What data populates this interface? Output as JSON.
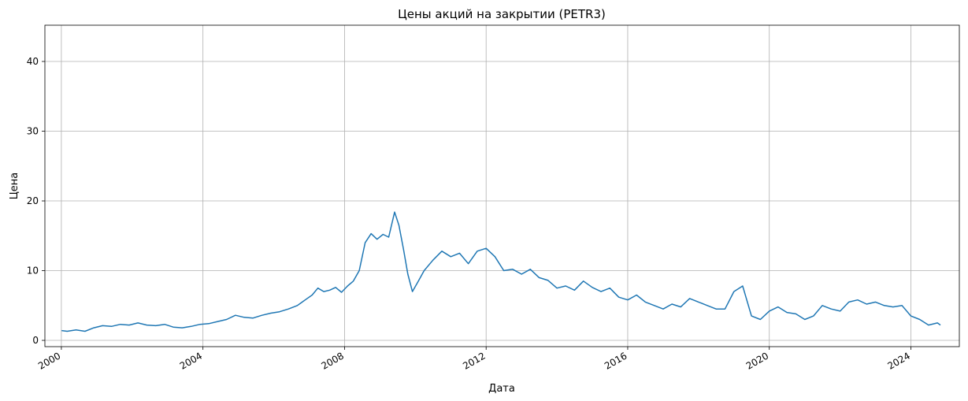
{
  "chart_data": {
    "type": "line",
    "title": "Цены акций на закрытии (PETR3)",
    "xlabel": "Дата",
    "ylabel": "Цена",
    "xlim": [
      "1999-07-15",
      "2025-05-15"
    ],
    "ylim": [
      -0.9,
      45.2
    ],
    "x_ticks": [
      "2000",
      "2004",
      "2008",
      "2012",
      "2016",
      "2020",
      "2024"
    ],
    "y_ticks": [
      0,
      10,
      20,
      30,
      40
    ],
    "grid": true,
    "legend": "none",
    "series": [
      {
        "color": "#1f77b4",
        "points": [
          [
            "2000-01-03",
            1.4
          ],
          [
            "2000-03-01",
            1.3
          ],
          [
            "2000-06-01",
            1.5
          ],
          [
            "2000-09-01",
            1.3
          ],
          [
            "2000-12-01",
            1.8
          ],
          [
            "2001-03-01",
            2.1
          ],
          [
            "2001-06-01",
            2.0
          ],
          [
            "2001-09-01",
            2.3
          ],
          [
            "2001-12-01",
            2.2
          ],
          [
            "2002-03-01",
            2.5
          ],
          [
            "2002-06-01",
            2.2
          ],
          [
            "2002-09-01",
            2.1
          ],
          [
            "2002-12-01",
            2.3
          ],
          [
            "2003-03-01",
            1.9
          ],
          [
            "2003-06-01",
            1.8
          ],
          [
            "2003-09-01",
            2.0
          ],
          [
            "2003-12-01",
            2.3
          ],
          [
            "2004-03-01",
            2.4
          ],
          [
            "2004-06-01",
            2.7
          ],
          [
            "2004-09-01",
            3.0
          ],
          [
            "2004-12-01",
            3.6
          ],
          [
            "2005-03-01",
            3.3
          ],
          [
            "2005-06-01",
            3.2
          ],
          [
            "2005-09-01",
            3.6
          ],
          [
            "2005-12-01",
            3.9
          ],
          [
            "2006-03-01",
            4.1
          ],
          [
            "2006-06-01",
            4.5
          ],
          [
            "2006-09-01",
            5.0
          ],
          [
            "2006-12-01",
            5.9
          ],
          [
            "2007-02-01",
            6.5
          ],
          [
            "2007-04-01",
            7.5
          ],
          [
            "2007-06-01",
            7.0
          ],
          [
            "2007-08-01",
            7.2
          ],
          [
            "2007-10-01",
            7.6
          ],
          [
            "2007-12-01",
            6.9
          ],
          [
            "2008-02-01",
            7.8
          ],
          [
            "2008-04-01",
            8.5
          ],
          [
            "2008-06-01",
            10.0
          ],
          [
            "2008-08-01",
            14.0
          ],
          [
            "2008-10-01",
            15.3
          ],
          [
            "2008-12-01",
            14.5
          ],
          [
            "2009-02-01",
            15.2
          ],
          [
            "2009-04-01",
            14.8
          ],
          [
            "2009-06-01",
            18.4
          ],
          [
            "2009-07-15",
            16.5
          ],
          [
            "2009-09-01",
            13.0
          ],
          [
            "2009-10-15",
            9.5
          ],
          [
            "2009-12-01",
            7.0
          ],
          [
            "2010-02-01",
            8.5
          ],
          [
            "2010-04-01",
            10.0
          ],
          [
            "2010-07-01",
            11.5
          ],
          [
            "2010-10-01",
            12.8
          ],
          [
            "2011-01-01",
            12.0
          ],
          [
            "2011-04-01",
            12.5
          ],
          [
            "2011-07-01",
            11.0
          ],
          [
            "2011-10-01",
            12.8
          ],
          [
            "2012-01-01",
            13.2
          ],
          [
            "2012-04-01",
            12.0
          ],
          [
            "2012-07-01",
            10.0
          ],
          [
            "2012-10-01",
            10.2
          ],
          [
            "2013-01-01",
            9.5
          ],
          [
            "2013-04-01",
            10.2
          ],
          [
            "2013-07-01",
            9.0
          ],
          [
            "2013-10-01",
            8.6
          ],
          [
            "2014-01-01",
            7.5
          ],
          [
            "2014-04-01",
            7.8
          ],
          [
            "2014-07-01",
            7.2
          ],
          [
            "2014-10-01",
            8.5
          ],
          [
            "2015-01-01",
            7.6
          ],
          [
            "2015-04-01",
            7.0
          ],
          [
            "2015-07-01",
            7.5
          ],
          [
            "2015-10-01",
            6.2
          ],
          [
            "2016-01-01",
            5.8
          ],
          [
            "2016-04-01",
            6.5
          ],
          [
            "2016-07-01",
            5.5
          ],
          [
            "2016-10-01",
            5.0
          ],
          [
            "2017-01-01",
            4.5
          ],
          [
            "2017-04-01",
            5.2
          ],
          [
            "2017-07-01",
            4.8
          ],
          [
            "2017-10-01",
            6.0
          ],
          [
            "2018-01-01",
            5.5
          ],
          [
            "2018-04-01",
            5.0
          ],
          [
            "2018-07-01",
            4.5
          ],
          [
            "2018-10-01",
            4.5
          ],
          [
            "2019-01-01",
            7.0
          ],
          [
            "2019-04-01",
            7.8
          ],
          [
            "2019-07-01",
            3.5
          ],
          [
            "2019-10-01",
            3.0
          ],
          [
            "2020-01-01",
            4.2
          ],
          [
            "2020-04-01",
            4.8
          ],
          [
            "2020-07-01",
            4.0
          ],
          [
            "2020-10-01",
            3.8
          ],
          [
            "2021-01-01",
            3.0
          ],
          [
            "2021-04-01",
            3.5
          ],
          [
            "2021-07-01",
            5.0
          ],
          [
            "2021-10-01",
            4.5
          ],
          [
            "2022-01-01",
            4.2
          ],
          [
            "2022-04-01",
            5.5
          ],
          [
            "2022-07-01",
            5.8
          ],
          [
            "2022-10-01",
            5.2
          ],
          [
            "2023-01-01",
            5.5
          ],
          [
            "2023-04-01",
            5.0
          ],
          [
            "2023-07-01",
            4.8
          ],
          [
            "2023-10-01",
            5.0
          ],
          [
            "2024-01-01",
            3.5
          ],
          [
            "2024-04-01",
            3.0
          ],
          [
            "2024-07-01",
            2.2
          ],
          [
            "2024-10-01",
            2.5
          ],
          [
            "2024-11-01",
            2.2
          ]
        ]
      }
    ]
  }
}
